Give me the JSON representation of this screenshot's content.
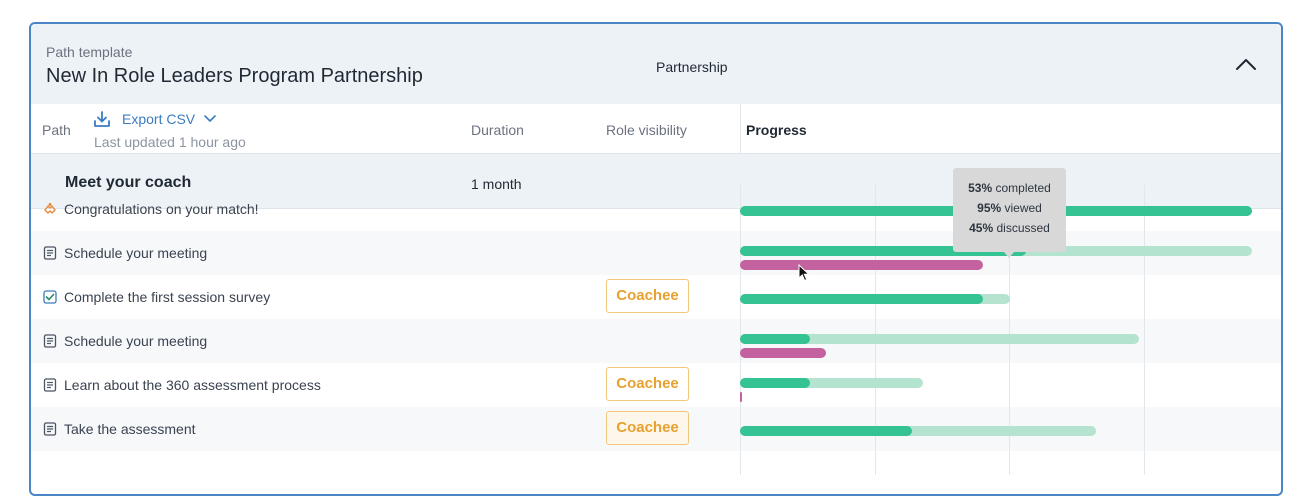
{
  "header": {
    "eyebrow": "Path template",
    "title": "New In Role Leaders Program Partnership",
    "partnership_label": "Partnership",
    "collapse_icon": "chevron-up-icon"
  },
  "columns": {
    "path": "Path",
    "export_label": "Export CSV",
    "export_icon": "download-icon",
    "last_updated": "Last updated 1 hour ago",
    "duration": "Duration",
    "role_visibility": "Role visibility",
    "progress": "Progress"
  },
  "section": {
    "title": "Meet your coach",
    "duration": "1 month"
  },
  "rows": [
    {
      "label": "Congratulations on your match!",
      "icon": "handshake-icon",
      "role": "",
      "progress": {
        "completed": 95,
        "viewed": 95,
        "discussed": 0
      }
    },
    {
      "label": "Schedule your meeting",
      "icon": "document-icon",
      "role": "",
      "progress": {
        "completed": 53,
        "viewed": 95,
        "discussed": 45
      }
    },
    {
      "label": "Complete the first session survey",
      "icon": "checkbox-icon",
      "role": "Coachee",
      "progress": {
        "completed": 45,
        "viewed": 50,
        "discussed": 0
      }
    },
    {
      "label": "Schedule your meeting",
      "icon": "document-icon",
      "role": "",
      "progress": {
        "completed": 13,
        "viewed": 74,
        "discussed": 16
      }
    },
    {
      "label": "Learn about the 360 assessment process",
      "icon": "document-icon",
      "role": "Coachee",
      "progress": {
        "completed": 13,
        "viewed": 34,
        "discussed": 0.3
      }
    },
    {
      "label": "Take the assessment",
      "icon": "document-icon",
      "role": "Coachee",
      "progress": {
        "completed": 32,
        "viewed": 66,
        "discussed": 0
      }
    }
  ],
  "tooltip": {
    "completed_pct": "53%",
    "completed_label": " completed",
    "viewed_pct": "95%",
    "viewed_label": " viewed",
    "discussed_pct": "45%",
    "discussed_label": " discussed"
  },
  "colors": {
    "accent": "#3b7cc1",
    "completed": "#35c393",
    "viewed": "#b4e3d0",
    "discussed": "#c4629f",
    "badge": "#e8a12f",
    "handshake_icon": "#e8893a"
  }
}
